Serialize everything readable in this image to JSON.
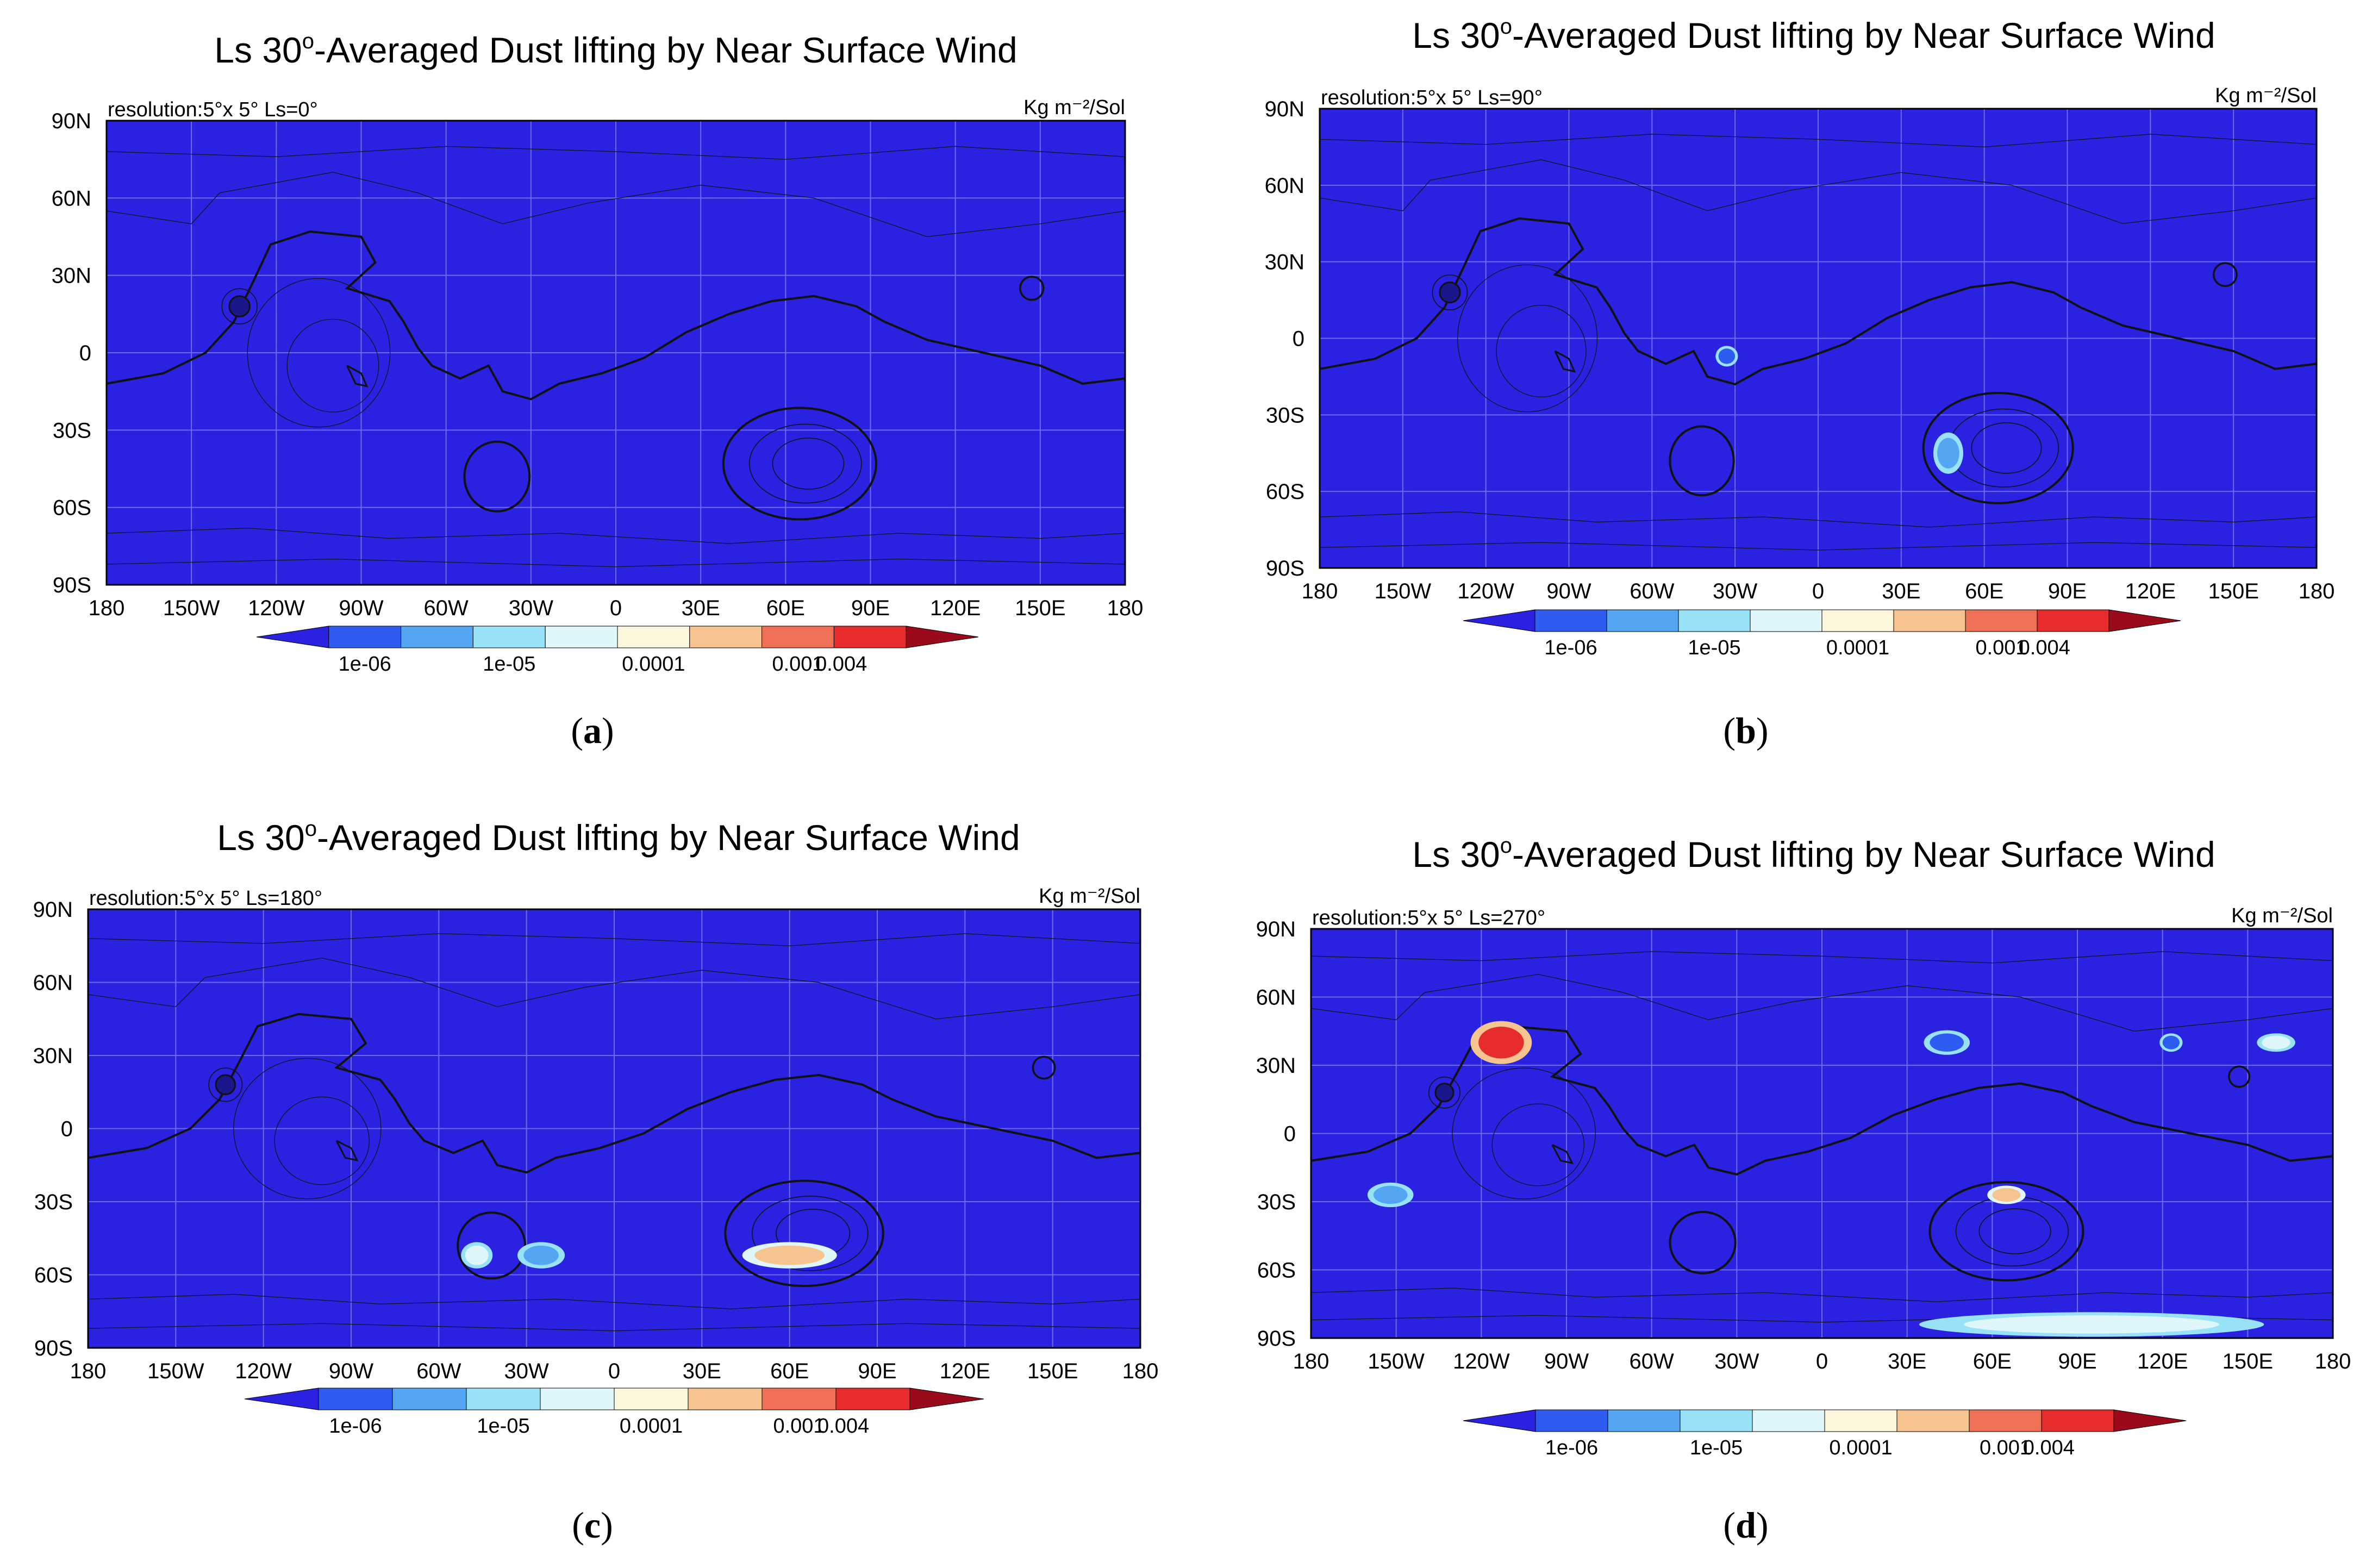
{
  "figure": {
    "panels": [
      {
        "id": "a",
        "caption_letter": "a",
        "title_prefix": "Ls 30",
        "title_suffix": "-Averaged Dust lifting by Near Surface Wind",
        "resolution_label": "resolution:5°x 5°  Ls=0°",
        "units_label": "Kg m⁻²/Sol"
      },
      {
        "id": "b",
        "caption_letter": "b",
        "title_prefix": "Ls 30",
        "title_suffix": "-Averaged Dust lifting by Near Surface Wind",
        "resolution_label": "resolution:5°x 5°  Ls=90°",
        "units_label": "Kg m⁻²/Sol"
      },
      {
        "id": "c",
        "caption_letter": "c",
        "title_prefix": "Ls 30",
        "title_suffix": "-Averaged Dust lifting by Near Surface Wind",
        "resolution_label": "resolution:5°x 5°  Ls=180°",
        "units_label": "Kg m⁻²/Sol"
      },
      {
        "id": "d",
        "caption_letter": "d",
        "title_prefix": "Ls 30",
        "title_suffix": "-Averaged Dust lifting by Near Surface Wind",
        "resolution_label": "resolution:5°x 5°  Ls=270°",
        "units_label": "Kg m⁻²/Sol"
      }
    ]
  },
  "chart_data": [
    {
      "type": "heatmap",
      "panel": "a",
      "title": "Ls 30°-Averaged Dust lifting by Near Surface Wind",
      "ls": 0,
      "xlim": [
        -180,
        180
      ],
      "ylim": [
        -90,
        90
      ],
      "x_ticks": [
        "180",
        "150W",
        "120W",
        "90W",
        "60W",
        "30W",
        "0",
        "30E",
        "60E",
        "90E",
        "120E",
        "150E",
        "180"
      ],
      "y_ticks": [
        "90S",
        "60S",
        "30S",
        "0",
        "30N",
        "60N",
        "90N"
      ],
      "colorbar_labels": [
        "1e-06",
        "1e-05",
        "0.0001",
        "0.001",
        "0.004"
      ],
      "hotspots": []
    },
    {
      "type": "heatmap",
      "panel": "b",
      "title": "Ls 30°-Averaged Dust lifting by Near Surface Wind",
      "ls": 90,
      "xlim": [
        -180,
        180
      ],
      "ylim": [
        -90,
        90
      ],
      "x_ticks": [
        "180",
        "150W",
        "120W",
        "90W",
        "60W",
        "30W",
        "0",
        "30E",
        "60E",
        "90E",
        "120E",
        "150E",
        "180"
      ],
      "y_ticks": [
        "90S",
        "60S",
        "30S",
        "0",
        "30N",
        "60N",
        "90N"
      ],
      "colorbar_labels": [
        "1e-06",
        "1e-05",
        "0.0001",
        "0.001",
        "0.004"
      ],
      "hotspots": [
        {
          "lon": -33,
          "lat": -7,
          "rlon": 3,
          "rlat": 3,
          "level": "1e-06"
        },
        {
          "lon": 47,
          "lat": -45,
          "rlon": 4,
          "rlat": 6,
          "level": "1e-05"
        }
      ]
    },
    {
      "type": "heatmap",
      "panel": "c",
      "title": "Ls 30°-Averaged Dust lifting by Near Surface Wind",
      "ls": 180,
      "xlim": [
        -180,
        180
      ],
      "ylim": [
        -90,
        90
      ],
      "x_ticks": [
        "180",
        "150W",
        "120W",
        "90W",
        "60W",
        "30W",
        "0",
        "30E",
        "60E",
        "90E",
        "120E",
        "150E",
        "180"
      ],
      "y_ticks": [
        "90S",
        "60S",
        "30S",
        "0",
        "30N",
        "60N",
        "90N"
      ],
      "colorbar_labels": [
        "1e-06",
        "1e-05",
        "0.0001",
        "0.001",
        "0.004"
      ],
      "hotspots": [
        {
          "lon": -47,
          "lat": -52,
          "rlon": 4,
          "rlat": 4,
          "level": "0.0001"
        },
        {
          "lon": -25,
          "lat": -52,
          "rlon": 6,
          "rlat": 4,
          "level": "1e-05"
        },
        {
          "lon": 60,
          "lat": -52,
          "rlon": 12,
          "rlat": 4,
          "level": "0.001"
        }
      ]
    },
    {
      "type": "heatmap",
      "panel": "d",
      "title": "Ls 30°-Averaged Dust lifting by Near Surface Wind",
      "ls": 270,
      "xlim": [
        -180,
        180
      ],
      "ylim": [
        -90,
        90
      ],
      "x_ticks": [
        "180",
        "150W",
        "120W",
        "90W",
        "60W",
        "30W",
        "0",
        "30E",
        "60E",
        "90E",
        "120E",
        "150E",
        "180"
      ],
      "y_ticks": [
        "90S",
        "60S",
        "30S",
        "0",
        "30N",
        "60N",
        "90N"
      ],
      "colorbar_labels": [
        "1e-06",
        "1e-05",
        "0.0001",
        "0.001",
        "0.004"
      ],
      "hotspots": [
        {
          "lon": -113,
          "lat": 40,
          "rlon": 8,
          "rlat": 7,
          "level": "0.004"
        },
        {
          "lon": 44,
          "lat": 40,
          "rlon": 6,
          "rlat": 4,
          "level": "1e-06"
        },
        {
          "lon": 123,
          "lat": 40,
          "rlon": 3,
          "rlat": 3,
          "level": "1e-06"
        },
        {
          "lon": 160,
          "lat": 40,
          "rlon": 5,
          "rlat": 3,
          "level": "0.0001"
        },
        {
          "lon": -152,
          "lat": -27,
          "rlon": 6,
          "rlat": 4,
          "level": "1e-05"
        },
        {
          "lon": 65,
          "lat": -27,
          "rlon": 5,
          "rlat": 3,
          "level": "0.001"
        },
        {
          "lon": 95,
          "lat": -84,
          "rlon": 45,
          "rlat": 4,
          "level": "0.0001"
        }
      ]
    }
  ],
  "colors": {
    "map_background": "#2a22e0",
    "grid": "#6b6bf5",
    "contour": "#111111",
    "colorbar": [
      "#2a22e0",
      "#2f5cf0",
      "#55a6f2",
      "#98e2f8",
      "#dff7fb",
      "#fbf6dc",
      "#f6c48e",
      "#ee7055",
      "#e62c2c",
      "#9b0a1a"
    ]
  }
}
